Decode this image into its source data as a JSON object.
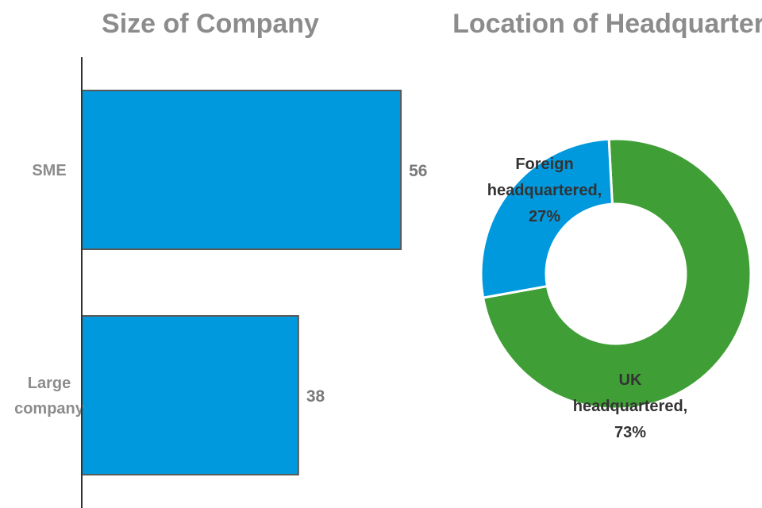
{
  "chart_data": [
    {
      "type": "bar",
      "orientation": "horizontal",
      "title": "Size of Company",
      "categories": [
        "SME",
        "Large company"
      ],
      "values": [
        56,
        38
      ],
      "bar_color": "#0099dd",
      "bar_outline_color": "#595959",
      "axis_color": "#333333",
      "data_labels": true,
      "grid": false,
      "legend": "none"
    },
    {
      "type": "pie",
      "variant": "donut",
      "title": "Location of Headquarters",
      "slices": [
        {
          "label": "UK headquartered,",
          "value": 73,
          "value_label": "73%",
          "color": "#3f9e35"
        },
        {
          "label": "Foreign headquartered,",
          "value": 27,
          "value_label": "27%",
          "color": "#0099dd"
        }
      ],
      "slice_separator_color": "#ffffff",
      "legend": "none"
    }
  ]
}
